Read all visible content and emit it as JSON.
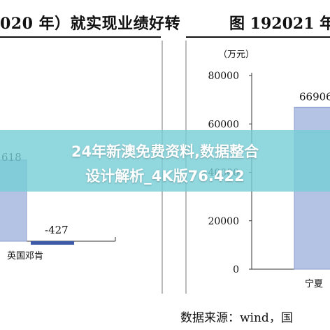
{
  "header": {
    "left_title": "020 年）就实现业绩好转",
    "right_title": "图 192021 年"
  },
  "banner": {
    "line1": "24年新澳免费资料,数据整合",
    "line2": "设计解析_4K版76.422"
  },
  "source": "数据来源：wind，国",
  "colors": {
    "bar": "#b4c2e3",
    "bar_stroke": "#8d9fcf",
    "negative_bar": "#3d5aa8"
  },
  "chart_data": [
    {
      "type": "bar",
      "categories": [
        "",
        "英国邓肯"
      ],
      "values": [
        618,
        -427
      ],
      "value_labels": [
        "618",
        "-427"
      ]
    },
    {
      "type": "bar",
      "unit": "（万元）",
      "categories": [
        "宁夏"
      ],
      "values": [
        66906
      ],
      "value_labels": [
        "66906"
      ],
      "ylim": [
        0,
        80000
      ],
      "yticks": [
        "0",
        "20000",
        "40000",
        "60000",
        "80000"
      ]
    }
  ]
}
